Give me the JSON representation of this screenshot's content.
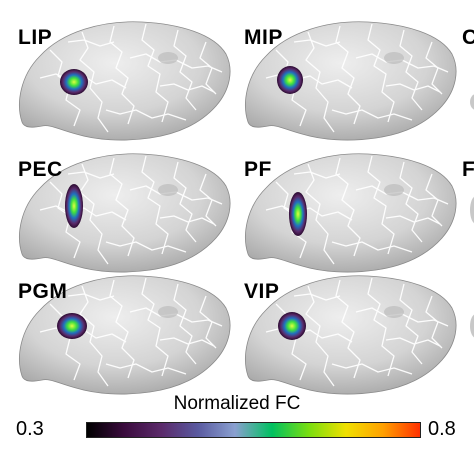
{
  "panels": [
    {
      "label": "LIP"
    },
    {
      "label": "MIP"
    },
    {
      "label": "PEC"
    },
    {
      "label": "PF"
    },
    {
      "label": "PGM"
    },
    {
      "label": "VIP"
    }
  ],
  "cropped_panels": [
    {
      "label": "C"
    },
    {
      "label": "F"
    },
    {
      "label": ""
    }
  ],
  "colorbar": {
    "title": "Normalized FC",
    "min": "0.3",
    "max": "0.8",
    "colors": [
      "#000000",
      "#3a0b3d",
      "#5b2a6a",
      "#5a5aa0",
      "#8aa0d0",
      "#00c060",
      "#7ade10",
      "#f0e000",
      "#ffa000",
      "#ff3000"
    ]
  }
}
